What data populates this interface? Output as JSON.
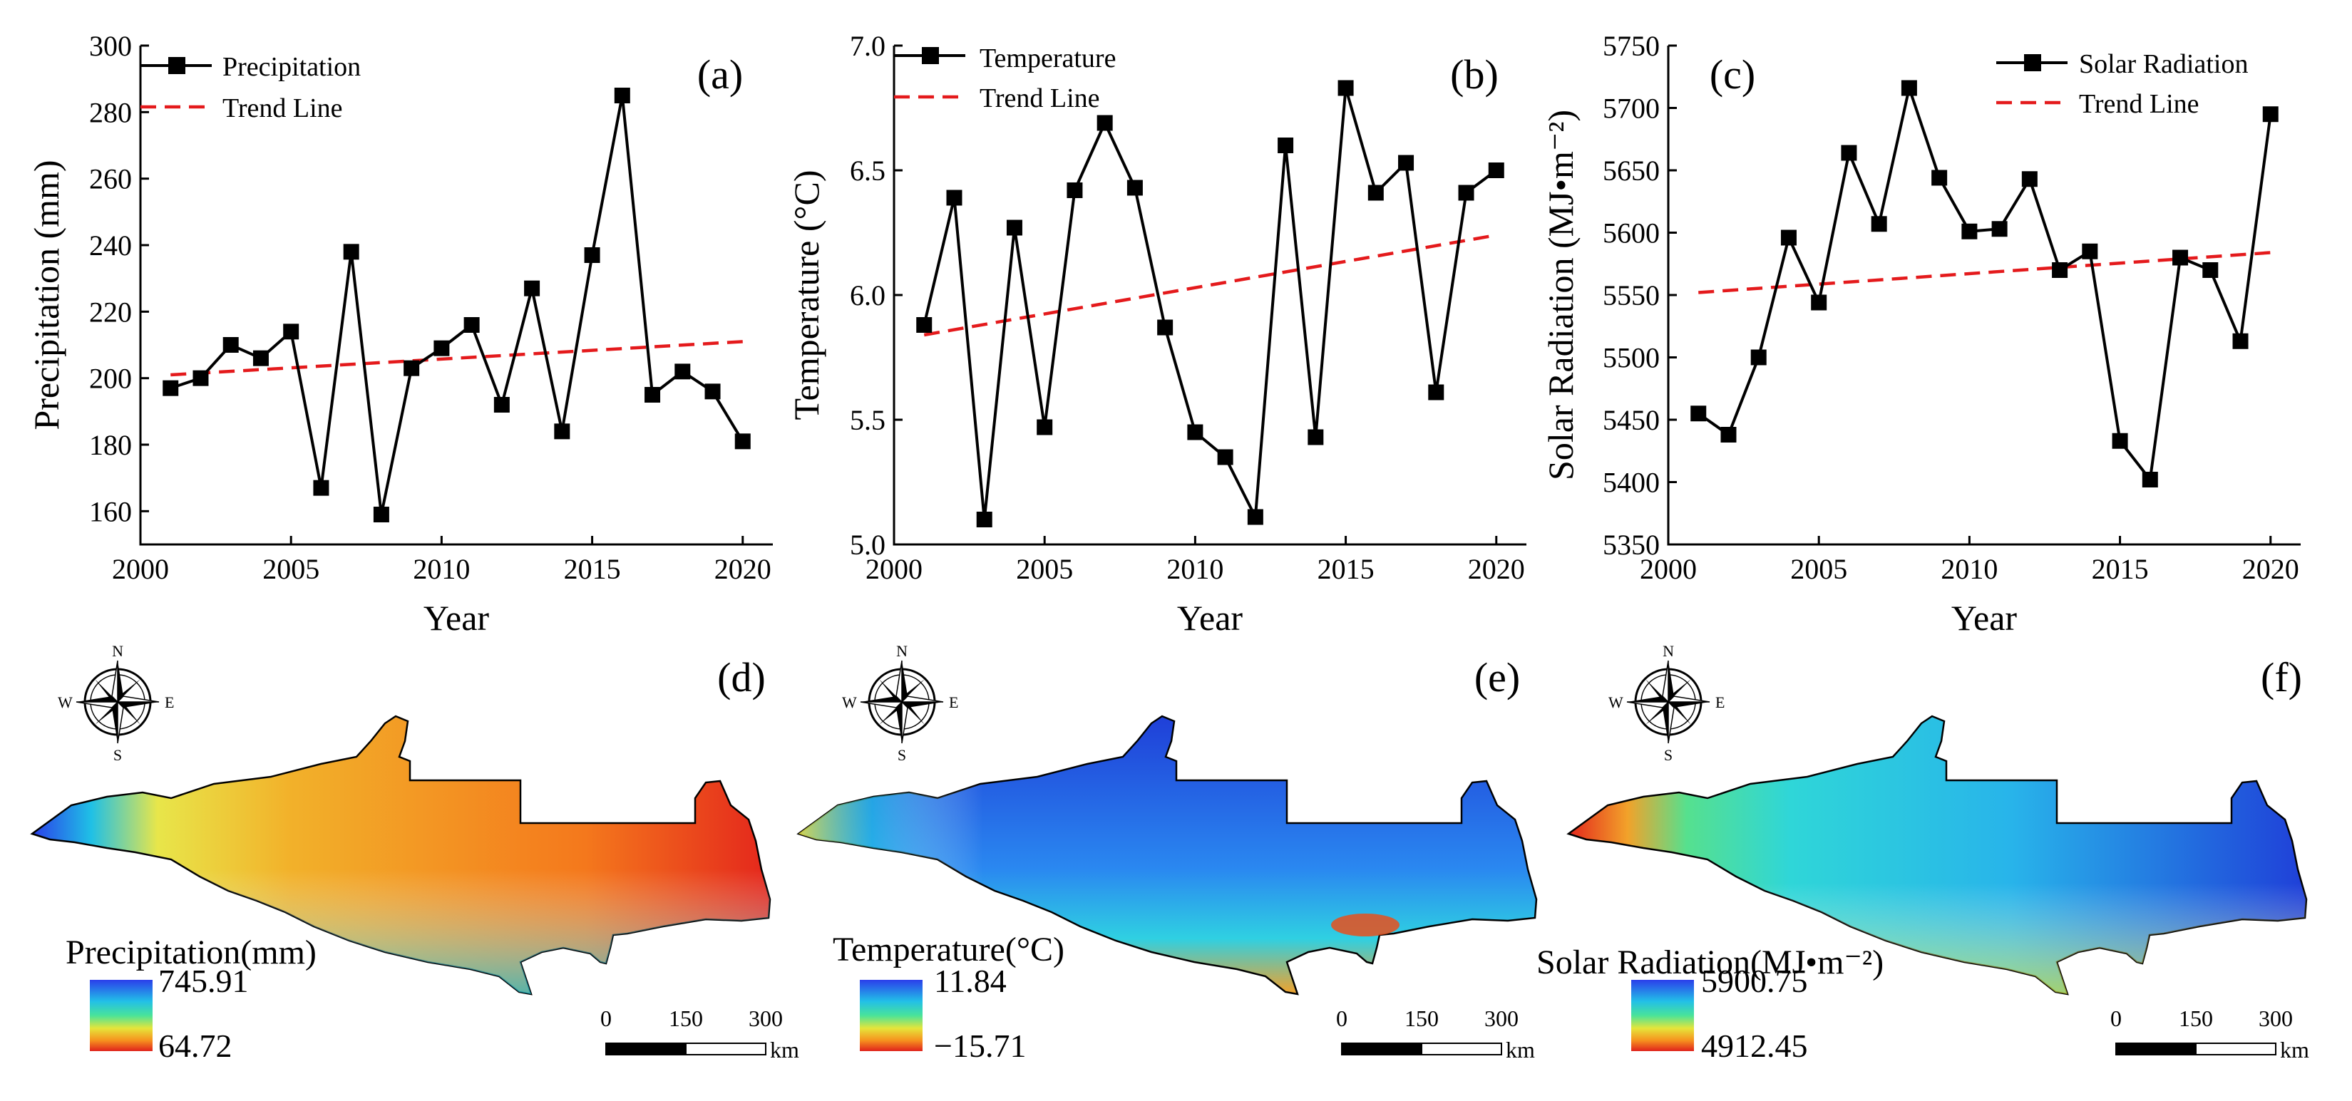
{
  "chart_data": [
    {
      "panel": "(a)",
      "type": "line",
      "title": "",
      "xlabel": "Year",
      "ylabel": "Precipitation (mm)",
      "xlim": [
        2000,
        2021
      ],
      "ylim": [
        150,
        300
      ],
      "xticks": [
        2000,
        2005,
        2010,
        2015,
        2020
      ],
      "yticks": [
        160,
        180,
        200,
        220,
        240,
        260,
        280,
        300
      ],
      "x": [
        2001,
        2002,
        2003,
        2004,
        2005,
        2006,
        2007,
        2008,
        2009,
        2010,
        2011,
        2012,
        2013,
        2014,
        2015,
        2016,
        2017,
        2018,
        2019,
        2020
      ],
      "series": [
        {
          "name": "Precipitation",
          "values": [
            197,
            200,
            210,
            206,
            214,
            167,
            238,
            159,
            203,
            209,
            216,
            192,
            227,
            184,
            237,
            285,
            195,
            202,
            196,
            181
          ]
        }
      ],
      "trend": {
        "name": "Trend Line",
        "start": [
          2001,
          201
        ],
        "end": [
          2020,
          211
        ]
      },
      "legend": "top-left"
    },
    {
      "panel": "(b)",
      "type": "line",
      "title": "",
      "xlabel": "Year",
      "ylabel": "Temperature (°C)",
      "xlim": [
        2000,
        2021
      ],
      "ylim": [
        5.0,
        7.0
      ],
      "xticks": [
        2000,
        2005,
        2010,
        2015,
        2020
      ],
      "yticks": [
        "5.0",
        "5.5",
        "6.0",
        "6.5",
        "7.0"
      ],
      "x": [
        2001,
        2002,
        2003,
        2004,
        2005,
        2006,
        2007,
        2008,
        2009,
        2010,
        2011,
        2012,
        2013,
        2014,
        2015,
        2016,
        2017,
        2018,
        2019,
        2020
      ],
      "series": [
        {
          "name": "Temperature",
          "values": [
            5.88,
            6.39,
            5.1,
            6.27,
            5.47,
            6.42,
            6.69,
            6.43,
            5.87,
            5.45,
            5.35,
            5.11,
            6.6,
            5.43,
            6.83,
            6.41,
            6.53,
            5.61,
            6.41,
            6.5
          ]
        }
      ],
      "trend": {
        "name": "Trend Line",
        "start": [
          2001,
          5.84
        ],
        "end": [
          2020,
          6.24
        ]
      },
      "legend": "top-left"
    },
    {
      "panel": "(c)",
      "type": "line",
      "title": "",
      "xlabel": "Year",
      "ylabel": "Solar Radiation (MJ•m⁻²)",
      "xlim": [
        2000,
        2021
      ],
      "ylim": [
        5350,
        5750
      ],
      "xticks": [
        2000,
        2005,
        2010,
        2015,
        2020
      ],
      "yticks": [
        5350,
        5400,
        5450,
        5500,
        5550,
        5600,
        5650,
        5700,
        5750
      ],
      "x": [
        2001,
        2002,
        2003,
        2004,
        2005,
        2006,
        2007,
        2008,
        2009,
        2010,
        2011,
        2012,
        2013,
        2014,
        2015,
        2016,
        2017,
        2018,
        2019,
        2020
      ],
      "series": [
        {
          "name": "Solar Radiation",
          "values": [
            5455,
            5438,
            5500,
            5596,
            5544,
            5664,
            5607,
            5716,
            5644,
            5601,
            5603,
            5643,
            5570,
            5585,
            5433,
            5402,
            5580,
            5570,
            5513,
            5695
          ]
        }
      ],
      "trend": {
        "name": "Trend Line",
        "start": [
          2001,
          5552
        ],
        "end": [
          2020,
          5584
        ]
      },
      "legend": "top-right"
    }
  ],
  "maps": [
    {
      "panel": "(d)",
      "title": "Precipitation(mm)",
      "max": "745.91",
      "min": "64.72",
      "low_color": "#d7191c",
      "high_color": "#2b3eea"
    },
    {
      "panel": "(e)",
      "title": "Temperature(°C)",
      "max": "11.84",
      "min": "−15.71",
      "low_color": "#d7191c",
      "high_color": "#2b3eea"
    },
    {
      "panel": "(f)",
      "title": "Solar Radiation(MJ•m⁻²)",
      "max": "5900.75",
      "min": "4912.45",
      "low_color": "#d7191c",
      "high_color": "#2b3eea"
    }
  ],
  "compass": {
    "n": "N",
    "s": "S",
    "e": "E",
    "w": "W"
  },
  "scalebar": {
    "ticks": [
      "0",
      "150",
      "300"
    ],
    "unit": "km"
  },
  "colors": {
    "series": "#000000",
    "trend": "#e41a1c"
  }
}
